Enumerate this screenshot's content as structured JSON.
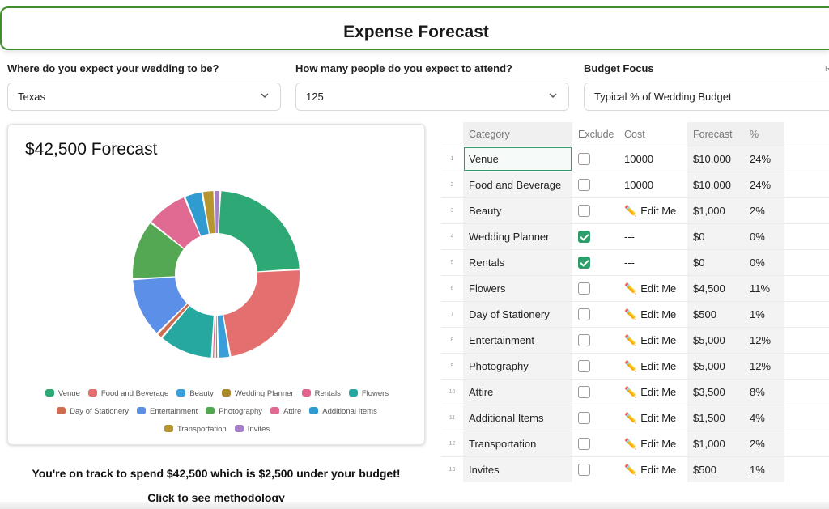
{
  "header": {
    "title": "Expense Forecast"
  },
  "questions": [
    {
      "label": "Where do you expect your wedding to be?",
      "value": "Texas"
    },
    {
      "label": "How many people do you expect to attend?",
      "value": "125"
    },
    {
      "label": "Budget Focus",
      "value": "Typical % of Wedding Budget"
    }
  ],
  "right_edge_text": "R",
  "card": {
    "title": "$42,500 Forecast"
  },
  "chart_data": {
    "type": "pie",
    "style": "donut",
    "title": "$42,500 Forecast",
    "labels": [
      "Venue",
      "Food and Beverage",
      "Beauty",
      "Wedding Planner",
      "Rentals",
      "Flowers",
      "Day of Stationery",
      "Entertainment",
      "Photography",
      "Attire",
      "Additional Items",
      "Transportation",
      "Invites"
    ],
    "values": [
      10000,
      10000,
      1000,
      0,
      0,
      4500,
      500,
      5000,
      5000,
      3500,
      1500,
      1000,
      500
    ],
    "colors": [
      "#2ea874",
      "#e46f6f",
      "#3a9fd8",
      "#a88a2c",
      "#e0648e",
      "#26a8a0",
      "#cf6d50",
      "#5c8fe8",
      "#55a853",
      "#e06a91",
      "#2f9bd0",
      "#b6962e",
      "#a77fc7"
    ],
    "legend_position": "bottom"
  },
  "legend_rows": [
    [
      "Venue",
      "Food and Beverage",
      "Beauty",
      "Wedding Planner",
      "Rentals",
      "Flowers"
    ],
    [
      "Day of Stationery",
      "Entertainment",
      "Photography",
      "Attire",
      "Additional Items"
    ],
    [
      "Transportation",
      "Invites"
    ]
  ],
  "summary": "You're on track to spend $42,500 which is $2,500 under your budget!",
  "methodology_link": "Click to see methodology",
  "table": {
    "headers": {
      "category": "Category",
      "exclude": "Exclude",
      "cost": "Cost",
      "forecast": "Forecast",
      "percent": "%"
    },
    "edit_label": "Edit Me",
    "rows": [
      {
        "num": "1",
        "category": "Venue",
        "excluded": false,
        "cost": "10000",
        "forecast": "$10,000",
        "percent": "24%"
      },
      {
        "num": "2",
        "category": "Food and Beverage",
        "excluded": false,
        "cost": "10000",
        "forecast": "$10,000",
        "percent": "24%"
      },
      {
        "num": "3",
        "category": "Beauty",
        "excluded": false,
        "cost": "",
        "forecast": "$1,000",
        "percent": "2%"
      },
      {
        "num": "4",
        "category": "Wedding Planner",
        "excluded": true,
        "cost": "---",
        "forecast": "$0",
        "percent": "0%"
      },
      {
        "num": "5",
        "category": "Rentals",
        "excluded": true,
        "cost": "---",
        "forecast": "$0",
        "percent": "0%"
      },
      {
        "num": "6",
        "category": "Flowers",
        "excluded": false,
        "cost": "",
        "forecast": "$4,500",
        "percent": "11%"
      },
      {
        "num": "7",
        "category": "Day of Stationery",
        "excluded": false,
        "cost": "",
        "forecast": "$500",
        "percent": "1%"
      },
      {
        "num": "8",
        "category": "Entertainment",
        "excluded": false,
        "cost": "",
        "forecast": "$5,000",
        "percent": "12%"
      },
      {
        "num": "9",
        "category": "Photography",
        "excluded": false,
        "cost": "",
        "forecast": "$5,000",
        "percent": "12%"
      },
      {
        "num": "10",
        "category": "Attire",
        "excluded": false,
        "cost": "",
        "forecast": "$3,500",
        "percent": "8%"
      },
      {
        "num": "11",
        "category": "Additional Items",
        "excluded": false,
        "cost": "",
        "forecast": "$1,500",
        "percent": "4%"
      },
      {
        "num": "12",
        "category": "Transportation",
        "excluded": false,
        "cost": "",
        "forecast": "$1,000",
        "percent": "2%"
      },
      {
        "num": "13",
        "category": "Invites",
        "excluded": false,
        "cost": "",
        "forecast": "$500",
        "percent": "1%"
      }
    ]
  }
}
